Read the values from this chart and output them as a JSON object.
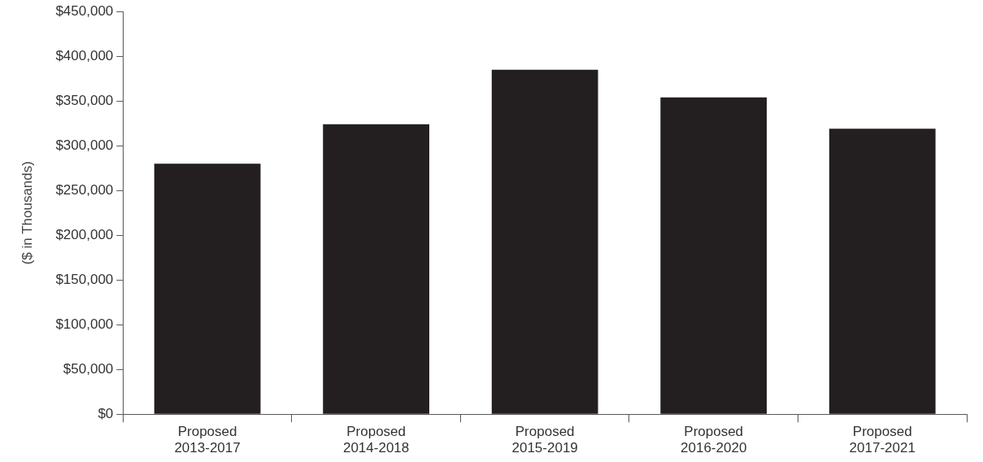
{
  "chart_data": {
    "type": "bar",
    "ylabel": "($ in Thousands)",
    "categories": [
      "Proposed\n2013-2017",
      "Proposed\n2014-2018",
      "Proposed\n2015-2019",
      "Proposed\n2016-2020",
      "Proposed\n2017-2021"
    ],
    "values": [
      280000,
      324000,
      385000,
      354000,
      319000
    ],
    "color": "#231f20",
    "ylim": [
      0,
      450000
    ],
    "yticks": [
      {
        "value": 0,
        "label": "$0"
      },
      {
        "value": 50000,
        "label": "$50,000"
      },
      {
        "value": 100000,
        "label": "$100,000"
      },
      {
        "value": 150000,
        "label": "$150,000"
      },
      {
        "value": 200000,
        "label": "$200,000"
      },
      {
        "value": 250000,
        "label": "$250,000"
      },
      {
        "value": 300000,
        "label": "$300,000"
      },
      {
        "value": 350000,
        "label": "$350,000"
      },
      {
        "value": 400000,
        "label": "$400,000"
      },
      {
        "value": 450000,
        "label": "$450,000"
      }
    ],
    "grid": false,
    "legend": false
  }
}
